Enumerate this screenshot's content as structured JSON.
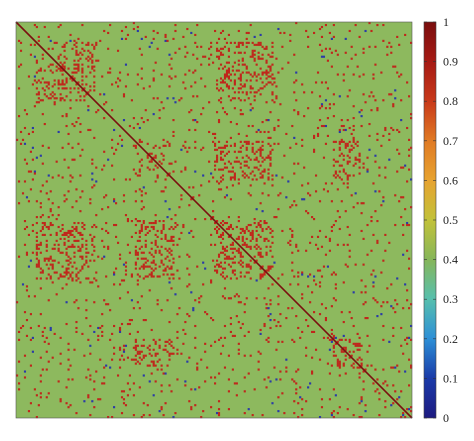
{
  "chart_data": {
    "type": "heatmap",
    "title": "",
    "xlabel": "",
    "ylabel": "",
    "description": "",
    "matrix_size": 200,
    "value_range": [
      0,
      1
    ],
    "background_value": 0.45,
    "diagonal_value": 1.0,
    "colorbar": {
      "position": "right",
      "ticks": [
        0,
        0.1,
        0.2,
        0.3,
        0.4,
        0.5,
        0.6,
        0.7,
        0.8,
        0.9,
        1
      ],
      "tick_labels": [
        "0",
        "0.1",
        "0.2",
        "0.3",
        "0.4",
        "0.5",
        "0.6",
        "0.7",
        "0.8",
        "0.9",
        "1"
      ],
      "colormap": "jet-like",
      "stops": [
        "#1d1a80",
        "#1a3aa8",
        "#2d8fd6",
        "#57bfae",
        "#86b65a",
        "#c2c23a",
        "#e7a330",
        "#e07a24",
        "#c8391a",
        "#a61a14",
        "#7a0e0e"
      ]
    },
    "high_value_color": "#c0261b",
    "low_value_color": "#2a3aa8",
    "background_color": "#8db95e",
    "diagonal_color": "#7a1010",
    "dense_blocks": [
      {
        "row_range": [
          10,
          40
        ],
        "col_range": [
          10,
          40
        ]
      },
      {
        "row_range": [
          60,
          80
        ],
        "col_range": [
          60,
          80
        ]
      },
      {
        "row_range": [
          100,
          130
        ],
        "col_range": [
          100,
          130
        ]
      },
      {
        "row_range": [
          160,
          175
        ],
        "col_range": [
          160,
          175
        ]
      },
      {
        "row_range": [
          10,
          40
        ],
        "col_range": [
          100,
          130
        ]
      },
      {
        "row_range": [
          100,
          130
        ],
        "col_range": [
          10,
          40
        ]
      },
      {
        "row_range": [
          60,
          80
        ],
        "col_range": [
          100,
          130
        ]
      },
      {
        "row_range": [
          100,
          130
        ],
        "col_range": [
          60,
          80
        ]
      },
      {
        "row_range": [
          160,
          175
        ],
        "col_range": [
          60,
          80
        ]
      },
      {
        "row_range": [
          60,
          80
        ],
        "col_range": [
          160,
          175
        ]
      }
    ]
  }
}
